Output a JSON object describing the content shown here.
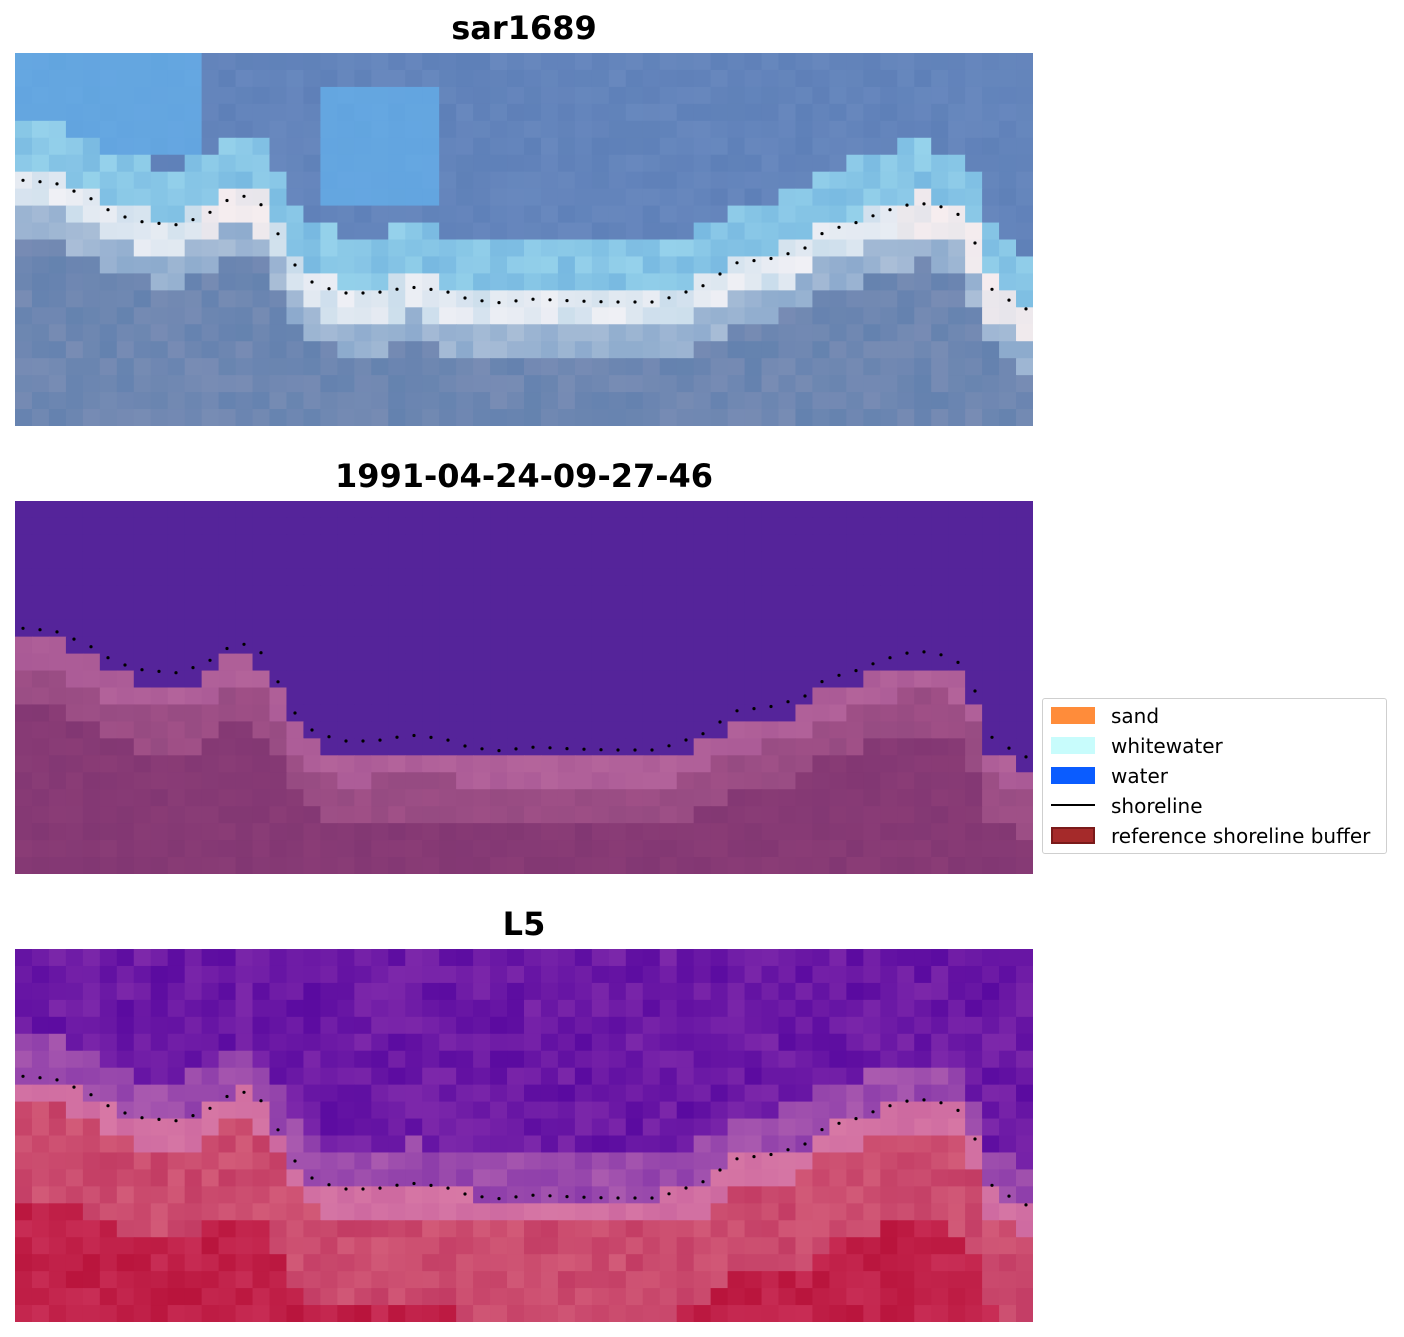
{
  "panels": [
    {
      "title": "sar1689",
      "style": "rgb"
    },
    {
      "title": "1991-04-24-09-27-46",
      "style": "classified"
    },
    {
      "title": "L5",
      "style": "index"
    }
  ],
  "legend": {
    "items": [
      {
        "label": "sand",
        "kind": "patch",
        "color": "#ff8c3a"
      },
      {
        "label": "whitewater",
        "kind": "patch",
        "color": "#c8fcfc"
      },
      {
        "label": "water",
        "kind": "patch",
        "color": "#0a5cff"
      },
      {
        "label": "shoreline",
        "kind": "line",
        "color": "#000000"
      },
      {
        "label": "reference shoreline buffer",
        "kind": "patch",
        "color": "#a52a2a",
        "edge": "#7a1a1a"
      }
    ]
  },
  "colors": {
    "water_class": "#55249a",
    "buffer_tint": "#a0507e",
    "shoreline_dots": "#000000"
  }
}
